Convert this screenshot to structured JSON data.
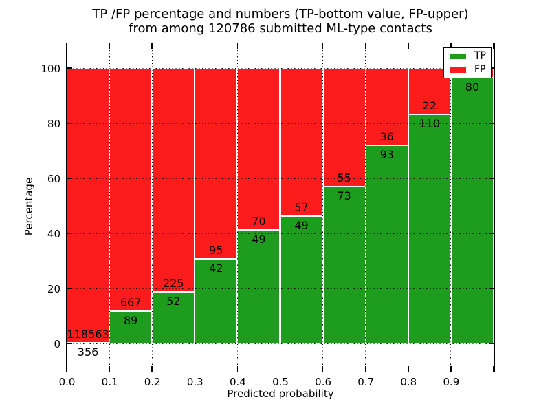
{
  "title": {
    "line1": "TP /FP percentage and numbers (TP-bottom value, FP-upper)",
    "line2": "from among 120786 submitted ML-type contacts"
  },
  "axes": {
    "xlabel": "Predicted probability",
    "ylabel": "Percentage",
    "x_tick_labels": [
      "0.0",
      "0.1",
      "0.2",
      "0.3",
      "0.4",
      "0.5",
      "0.6",
      "0.7",
      "0.8",
      "0.9"
    ],
    "y_tick_labels": [
      "0",
      "20",
      "40",
      "60",
      "80",
      "100"
    ],
    "y_tick_values": [
      0,
      20,
      40,
      60,
      80,
      100
    ],
    "xlim": [
      0.0,
      1.0
    ],
    "ylim": [
      -10.5,
      109.5
    ],
    "grid": "dotted"
  },
  "legend": {
    "position": "upper right",
    "items": [
      {
        "label": "TP",
        "color": "#1e9c1e"
      },
      {
        "label": "FP",
        "color": "#fc1c1c"
      }
    ]
  },
  "colors": {
    "tp": "#1e9c1e",
    "fp": "#fc1c1c",
    "bar_edge": "#ffffff",
    "text": "#000000"
  },
  "chart_data": {
    "type": "bar",
    "subtype": "stacked-percentage-histogram",
    "title": "TP /FP percentage and numbers (TP-bottom value, FP-upper) from among 120786 submitted ML-type contacts",
    "xlabel": "Predicted probability",
    "ylabel": "Percentage",
    "total_contacts": 120786,
    "bin_starts": [
      0.0,
      0.1,
      0.2,
      0.3,
      0.4,
      0.5,
      0.6,
      0.7,
      0.8,
      0.9
    ],
    "bin_width": 0.1,
    "series": [
      {
        "name": "TP",
        "counts": [
          356,
          89,
          52,
          42,
          49,
          49,
          73,
          93,
          110,
          80
        ],
        "pct": [
          0.3,
          11.77,
          18.77,
          30.66,
          41.18,
          46.23,
          57.03,
          72.09,
          83.33,
          96.4
        ]
      },
      {
        "name": "FP",
        "counts": [
          118563,
          667,
          225,
          95,
          70,
          57,
          55,
          36,
          22,
          null
        ],
        "pct": [
          99.7,
          88.23,
          81.23,
          69.34,
          58.82,
          53.77,
          42.97,
          27.91,
          16.67,
          3.6
        ]
      }
    ],
    "tp_labels": [
      "356",
      "89",
      "52",
      "42",
      "49",
      "49",
      "73",
      "93",
      "110",
      "80"
    ],
    "fp_labels": [
      "118563",
      "667",
      "225",
      "95",
      "70",
      "57",
      "55",
      "36",
      "22",
      ""
    ],
    "ylim": [
      -10.5,
      109.5
    ],
    "legend_position": "upper right",
    "grid": true
  }
}
